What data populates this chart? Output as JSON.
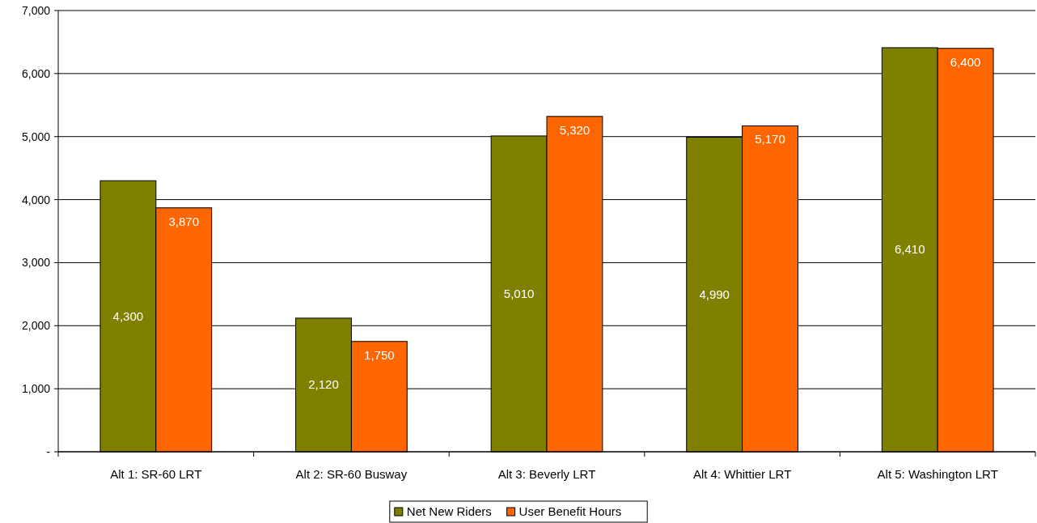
{
  "chart_data": {
    "type": "bar",
    "categories": [
      "Alt 1: SR-60 LRT",
      "Alt 2: SR-60 Busway",
      "Alt 3: Beverly LRT",
      "Alt 4: Whittier LRT",
      "Alt 5: Washington LRT"
    ],
    "series": [
      {
        "name": "Net New Riders",
        "color": "#808000",
        "values": [
          4300,
          2120,
          5010,
          4990,
          6410
        ],
        "value_labels": [
          "4,300",
          "2,120",
          "5,010",
          "4,990",
          "6,410"
        ]
      },
      {
        "name": "User Benefit Hours",
        "color": "#ff6600",
        "values": [
          3870,
          1750,
          5320,
          5170,
          6400
        ],
        "value_labels": [
          "3,870",
          "1,750",
          "5,320",
          "5,170",
          "6,400"
        ]
      }
    ],
    "ylim": [
      0,
      7000
    ],
    "yticks": [
      {
        "value": 0,
        "label": "-"
      },
      {
        "value": 1000,
        "label": "1,000"
      },
      {
        "value": 2000,
        "label": "2,000"
      },
      {
        "value": 3000,
        "label": "3,000"
      },
      {
        "value": 4000,
        "label": "4,000"
      },
      {
        "value": 5000,
        "label": "5,000"
      },
      {
        "value": 6000,
        "label": "6,000"
      },
      {
        "value": 7000,
        "label": "7,000"
      }
    ],
    "grid": "y",
    "legend": "bottom"
  }
}
